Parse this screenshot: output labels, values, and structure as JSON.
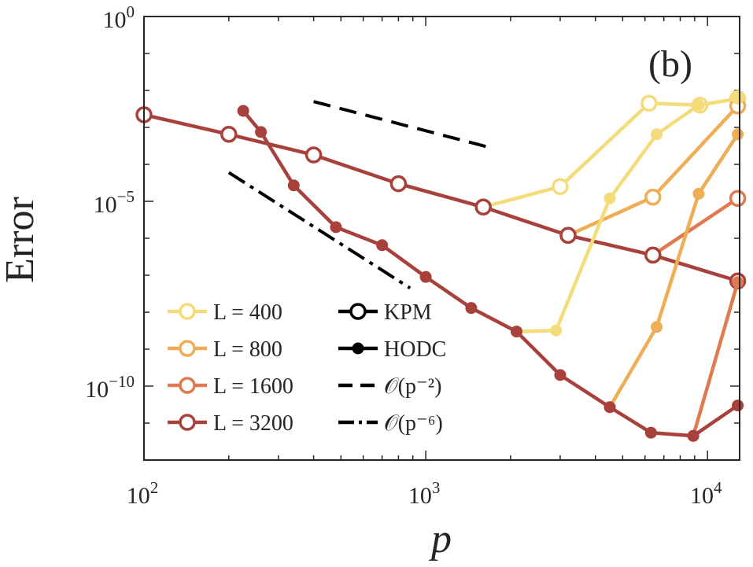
{
  "chart_data": {
    "type": "line",
    "panel_label": "(b)",
    "xlabel": "p",
    "ylabel": "Error",
    "xscale": "log",
    "yscale": "log",
    "xlim": [
      100,
      13000
    ],
    "ylim": [
      1e-12,
      1
    ],
    "x_ticks": [
      {
        "value": 100,
        "base": "10",
        "exp": "2"
      },
      {
        "value": 1000,
        "base": "10",
        "exp": "3"
      },
      {
        "value": 10000,
        "base": "10",
        "exp": "4"
      }
    ],
    "y_ticks": [
      {
        "value": 1,
        "base": "10",
        "exp": "0"
      },
      {
        "value": 1e-05,
        "base": "10",
        "exp": "−5"
      },
      {
        "value": 1e-10,
        "base": "10",
        "exp": "−10"
      }
    ],
    "legend": [
      {
        "label": "L = 400",
        "color": "#F4DC7A",
        "style": "marker-line"
      },
      {
        "label": "L = 800",
        "color": "#EFAE55",
        "style": "marker-line"
      },
      {
        "label": "L = 1600",
        "color": "#E07A50",
        "style": "marker-line"
      },
      {
        "label": "L = 3200",
        "color": "#A8413C",
        "style": "marker-line"
      },
      {
        "label": "KPM",
        "color": "#000000",
        "style": "open-marker"
      },
      {
        "label": "HODC",
        "color": "#000000",
        "style": "filled-marker"
      },
      {
        "label": "𝒪(p⁻²)",
        "color": "#000000",
        "style": "dashed"
      },
      {
        "label": "𝒪(p⁻⁶)",
        "color": "#000000",
        "style": "dashdot"
      }
    ],
    "series": [
      {
        "name": "L=400 KPM",
        "method": "KPM",
        "L": 400,
        "color": "#F4DC7A",
        "x": [
          1600,
          3000,
          6200,
          9400,
          12800
        ],
        "y": [
          7e-06,
          2.5e-05,
          0.0045,
          0.004,
          0.006
        ]
      },
      {
        "name": "L=800 KPM",
        "method": "KPM",
        "L": 800,
        "color": "#EFAE55",
        "x": [
          3200,
          6400,
          12800
        ],
        "y": [
          1.2e-06,
          1.3e-05,
          0.0038
        ]
      },
      {
        "name": "L=1600 KPM",
        "method": "KPM",
        "L": 1600,
        "color": "#E07A50",
        "x": [
          6400,
          12800
        ],
        "y": [
          3.5e-07,
          1.2e-05
        ]
      },
      {
        "name": "L=3200 KPM",
        "method": "KPM",
        "L": 3200,
        "color": "#A8413C",
        "x": [
          100,
          200,
          400,
          800,
          1600,
          3200,
          6400,
          12800
        ],
        "y": [
          0.0022,
          0.00065,
          0.00018,
          3e-05,
          7e-06,
          1.2e-06,
          3.5e-07,
          7e-08
        ]
      },
      {
        "name": "L=400 HODC",
        "method": "HODC",
        "L": 400,
        "color": "#F4DC7A",
        "x": [
          2100,
          2900,
          4500,
          6600,
          9300,
          12800
        ],
        "y": [
          3e-09,
          3.2e-09,
          1.2e-05,
          0.00065,
          0.004,
          0.006
        ]
      },
      {
        "name": "L=800 HODC",
        "method": "HODC",
        "L": 800,
        "color": "#EFAE55",
        "x": [
          4500,
          6600,
          9300,
          12800
        ],
        "y": [
          2.7e-11,
          4e-09,
          1.6e-05,
          0.00065
        ]
      },
      {
        "name": "L=1600 HODC",
        "method": "HODC",
        "L": 1600,
        "color": "#E07A50",
        "x": [
          8900,
          12800
        ],
        "y": [
          4.5e-12,
          6.5e-08
        ]
      },
      {
        "name": "L=3200 HODC",
        "method": "HODC",
        "L": 3200,
        "color": "#A8413C",
        "x": [
          225,
          260,
          340,
          480,
          700,
          1000,
          1450,
          2100,
          3000,
          4500,
          6300,
          8900,
          12800
        ],
        "y": [
          0.0028,
          0.00075,
          2.7e-05,
          2e-06,
          6.5e-07,
          9e-08,
          1.3e-08,
          3e-09,
          2e-10,
          2.7e-11,
          5.5e-12,
          4.5e-12,
          3e-11
        ]
      }
    ],
    "guides": [
      {
        "name": "O(p^-2)",
        "style": "dashed",
        "x": [
          400,
          1650
        ],
        "y": [
          0.005,
          0.0003
        ]
      },
      {
        "name": "O(p^-6)",
        "style": "dashdot",
        "x": [
          200,
          880
        ],
        "y": [
          6e-05,
          4.5e-08
        ]
      }
    ]
  }
}
